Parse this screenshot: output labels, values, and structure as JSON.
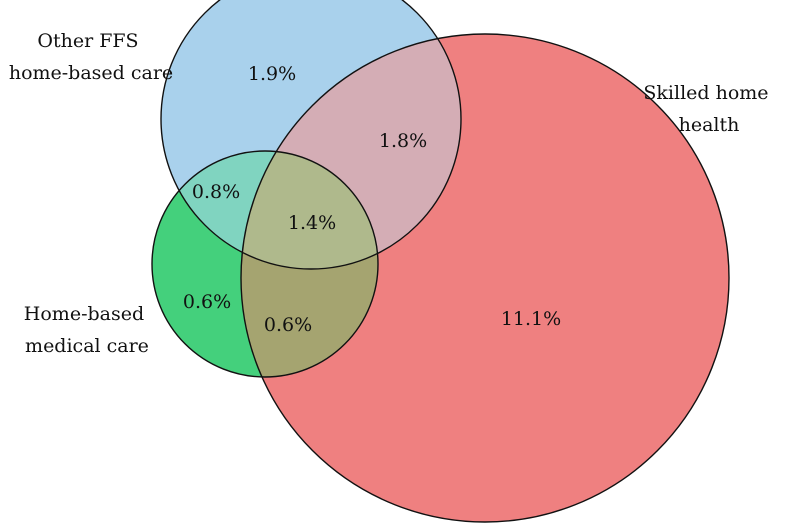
{
  "sets": [
    {
      "id": "other",
      "label_lines": [
        "Other FFS",
        "home-based care"
      ],
      "color": "#a9d1ec"
    },
    {
      "id": "skilled",
      "label_lines": [
        "Skilled home",
        "health"
      ],
      "color": "#ef8080"
    },
    {
      "id": "medical",
      "label_lines": [
        "Home-based",
        "medical care"
      ],
      "color": "#44d07c"
    }
  ],
  "regions": {
    "other_only": "1.9%",
    "other_skilled": "1.8%",
    "other_medical": "0.8%",
    "all_three": "1.4%",
    "medical_only": "0.6%",
    "medical_skilled": "0.6%",
    "skilled_only": "11.1%"
  },
  "colors": {
    "other_skilled": "#d4adb5",
    "other_medical": "#80d4c0",
    "medical_skilled": "#a5a470",
    "all_three": "#afb98c"
  }
}
